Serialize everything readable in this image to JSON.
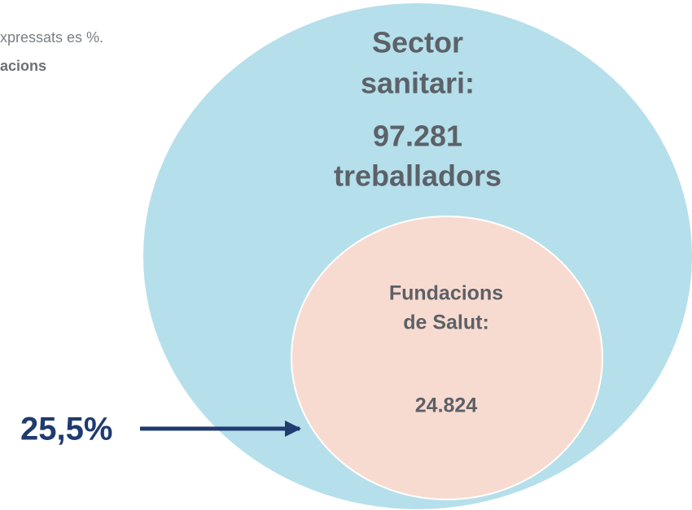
{
  "note": {
    "line1": "xpressats es %.",
    "line2": "acions"
  },
  "outer": {
    "title_lines": [
      "Sector",
      "sanitari:"
    ],
    "count": "97.281",
    "unit": "treballadors"
  },
  "inner": {
    "title_lines": [
      "Fundacions",
      "de Salut:"
    ],
    "count": "24.824"
  },
  "share": "25,5%"
}
